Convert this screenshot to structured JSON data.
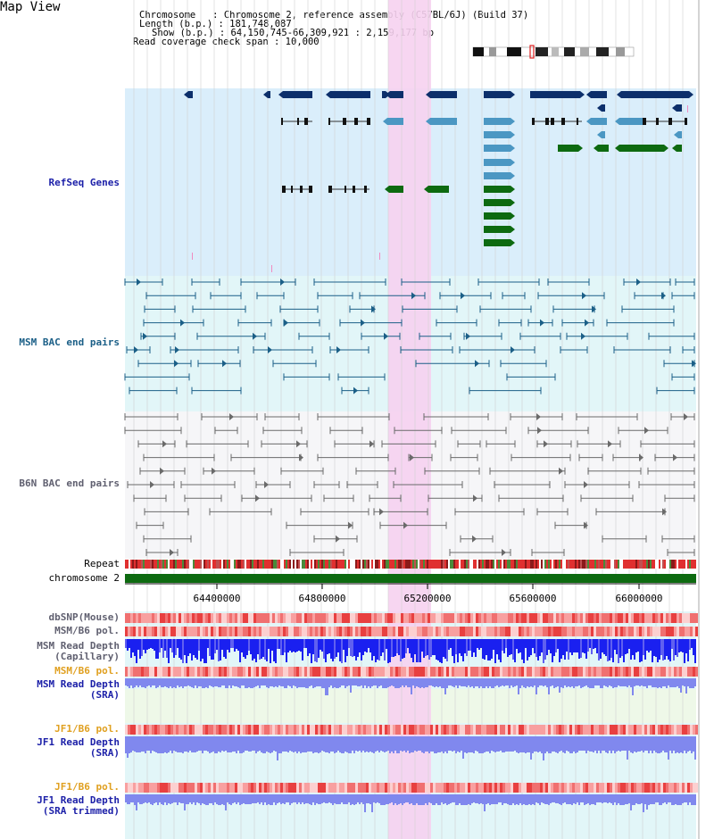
{
  "title": "Map View",
  "info": {
    "line1": "Chromosome   : Chromosome 2, reference assembly (C57BL/6J) (Build 37)",
    "line2": "Length (b.p.) : 181,748,087",
    "line3": "Show (b.p.) : 64,150,745-66,309,921 : 2,159,177 bp",
    "line4": "Read coverage check span : 10,000"
  },
  "tracks": {
    "refseq": "RefSeq Genes",
    "msm_bac": "MSM BAC end pairs",
    "b6n_bac": "B6N BAC end pairs",
    "repeat": "Repeat",
    "chromosome": "chromosome 2",
    "dbsnp": "dbSNP(Mouse)",
    "msm_b6_pol": "MSM/B6 pol.",
    "msm_depth_cap_1": "MSM Read Depth",
    "msm_depth_cap_2": "(Capillary)",
    "msm_b6_pol_2": "MSM/B6 pol.",
    "msm_depth_sra_1": "MSM Read Depth",
    "msm_depth_sra_2": "(SRA)",
    "jf1_b6_pol": "JF1/B6 pol.",
    "jf1_depth_sra_1": "JF1 Read Depth",
    "jf1_depth_sra_2": "(SRA)",
    "jf1_b6_pol_2": "JF1/B6 pol.",
    "jf1_depth_trim_1": "JF1 Read Depth",
    "jf1_depth_trim_2": "(SRA trimmed)"
  },
  "axis_ticks": [
    "64400000",
    "64800000",
    "65200000",
    "65600000",
    "66000000"
  ],
  "colors": {
    "refseq_bg": "#daeefb",
    "msm_bg": "#e2f6f8",
    "b6n_bg": "#f6f6f8",
    "highlight": "#f6d2ef",
    "gene_dark": "#0c2f6b",
    "gene_mid": "#4b97c3",
    "gene_green": "#0d6a10",
    "msm_line": "#1b5f87",
    "b6n_line": "#6a6a6a",
    "chrom_bar": "#0d6a10",
    "depth_blue": "#1a20f0",
    "depth_light": "#8088ee"
  }
}
